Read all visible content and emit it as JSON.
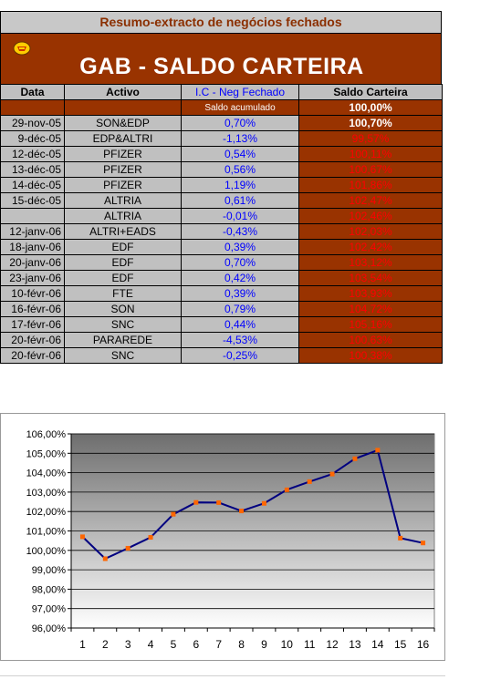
{
  "header": {
    "subtitle": "Resumo-extracto de negócios fechados",
    "title": "GAB  -  SALDO CARTEIRA",
    "logo_icon": "shield-logo-icon"
  },
  "columns": {
    "date": "Data",
    "asset": "Activo",
    "ic": "I.C - Neg Fechado",
    "saldo": "Saldo Carteira"
  },
  "accumulated": {
    "label": "Saldo acumulado",
    "value": "100,00%"
  },
  "rows": [
    {
      "date": "29-nov-05",
      "asset": "SON&EDP",
      "ic": "0,70%",
      "saldo": "100,70%"
    },
    {
      "date": "9-déc-05",
      "asset": "EDP&ALTRI",
      "ic": "-1,13%",
      "saldo": "99,57%"
    },
    {
      "date": "12-déc-05",
      "asset": "PFIZER",
      "ic": "0,54%",
      "saldo": "100,11%"
    },
    {
      "date": "13-déc-05",
      "asset": "PFIZER",
      "ic": "0,56%",
      "saldo": "100,67%"
    },
    {
      "date": "14-déc-05",
      "asset": "PFIZER",
      "ic": "1,19%",
      "saldo": "101,86%"
    },
    {
      "date": "15-déc-05",
      "asset": "ALTRIA",
      "ic": "0,61%",
      "saldo": "102,47%"
    },
    {
      "date": "",
      "asset": "ALTRIA",
      "ic": "-0,01%",
      "saldo": "102,46%"
    },
    {
      "date": "12-janv-06",
      "asset": "ALTRI+EADS",
      "ic": "-0,43%",
      "saldo": "102,03%"
    },
    {
      "date": "18-janv-06",
      "asset": "EDF",
      "ic": "0,39%",
      "saldo": "102,42%"
    },
    {
      "date": "20-janv-06",
      "asset": "EDF",
      "ic": "0,70%",
      "saldo": "103,12%"
    },
    {
      "date": "23-janv-06",
      "asset": "EDF",
      "ic": "0,42%",
      "saldo": "103,54%"
    },
    {
      "date": "10-févr-06",
      "asset": "FTE",
      "ic": "0,39%",
      "saldo": "103,93%"
    },
    {
      "date": "16-févr-06",
      "asset": "SON",
      "ic": "0,79%",
      "saldo": "104,72%"
    },
    {
      "date": "17-févr-06",
      "asset": "SNC",
      "ic": "0,44%",
      "saldo": "105,16%"
    },
    {
      "date": "20-févr-06",
      "asset": "PARAREDE",
      "ic": "-4,53%",
      "saldo": "100,63%"
    },
    {
      "date": "20-févr-06",
      "asset": "SNC",
      "ic": "-0,25%",
      "saldo": "100,38%"
    }
  ],
  "colors": {
    "band_brown": "#993300",
    "header_grey": "#c0c0c0",
    "ic_blue": "#0000ff",
    "saldo_red": "#ff0000",
    "line_navy": "#000080",
    "marker_orange": "#ff6600"
  },
  "chart_data": {
    "type": "line",
    "x": [
      1,
      2,
      3,
      4,
      5,
      6,
      7,
      8,
      9,
      10,
      11,
      12,
      13,
      14,
      15,
      16
    ],
    "series": [
      {
        "values": [
          100.7,
          99.57,
          100.11,
          100.67,
          101.86,
          102.47,
          102.46,
          102.03,
          102.42,
          103.12,
          103.54,
          103.93,
          104.72,
          105.16,
          100.63,
          100.38
        ]
      }
    ],
    "ylim": [
      96,
      106
    ],
    "yticks": [
      "96,00%",
      "97,00%",
      "98,00%",
      "99,00%",
      "100,00%",
      "101,00%",
      "102,00%",
      "103,00%",
      "104,00%",
      "105,00%",
      "106,00%"
    ],
    "xticks": [
      "1",
      "2",
      "3",
      "4",
      "5",
      "6",
      "7",
      "8",
      "9",
      "10",
      "11",
      "12",
      "13",
      "14",
      "15",
      "16"
    ],
    "grid": true,
    "background": "grey-gradient"
  }
}
